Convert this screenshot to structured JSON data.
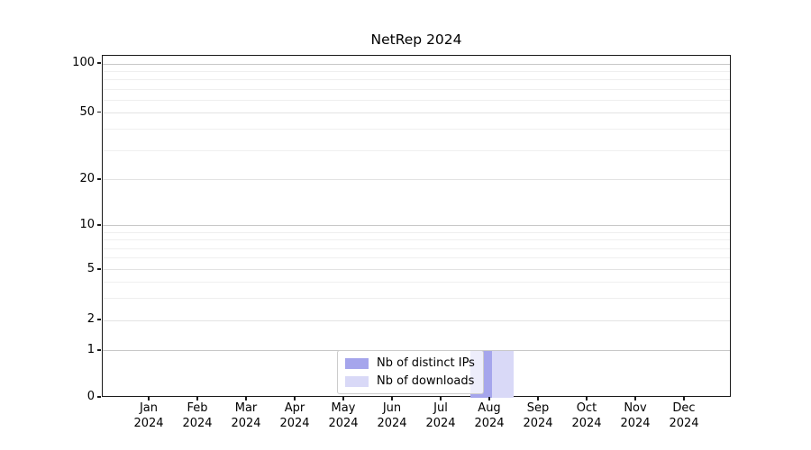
{
  "title": "NetRep 2024",
  "chart_data": {
    "type": "bar",
    "title": "NetRep 2024",
    "categories": [
      "Jan 2024",
      "Feb 2024",
      "Mar 2024",
      "Apr 2024",
      "May 2024",
      "Jun 2024",
      "Jul 2024",
      "Aug 2024",
      "Sep 2024",
      "Oct 2024",
      "Nov 2024",
      "Dec 2024"
    ],
    "series": [
      {
        "name": "Nb of distinct IPs",
        "color": "#a5a5ec",
        "values": [
          0,
          0,
          0,
          0,
          0,
          0,
          0,
          1,
          0,
          0,
          0,
          0
        ]
      },
      {
        "name": "Nb of downloads",
        "color": "#d9d9f7",
        "values": [
          0,
          0,
          0,
          0,
          0,
          0,
          0,
          1,
          0,
          0,
          0,
          0
        ]
      }
    ],
    "y_ticks": [
      0,
      1,
      2,
      5,
      10,
      20,
      50,
      100
    ],
    "y_minor_ticks": [
      3,
      4,
      6,
      7,
      8,
      9,
      30,
      40,
      60,
      70,
      80,
      90
    ],
    "yscale": "symlog",
    "ylim": [
      0,
      110
    ],
    "xlabel": "",
    "ylabel": "",
    "grid": "horizontal",
    "legend_position": "lower center"
  },
  "colors": {
    "grid_major": "#c8c8c8",
    "grid_mid": "#e3e3e3",
    "grid_minor": "#efefef",
    "axis": "#1a1a1a"
  }
}
